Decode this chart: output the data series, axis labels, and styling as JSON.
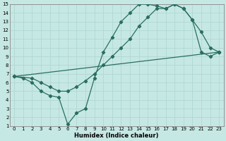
{
  "xlabel": "Humidex (Indice chaleur)",
  "ylabel": "",
  "xlim": [
    -0.5,
    23.5
  ],
  "ylim": [
    1,
    15
  ],
  "xticks": [
    0,
    1,
    2,
    3,
    4,
    5,
    6,
    7,
    8,
    9,
    10,
    11,
    12,
    13,
    14,
    15,
    16,
    17,
    18,
    19,
    20,
    21,
    22,
    23
  ],
  "yticks": [
    1,
    2,
    3,
    4,
    5,
    6,
    7,
    8,
    9,
    10,
    11,
    12,
    13,
    14,
    15
  ],
  "bg_color": "#c6e8e4",
  "grid_color": "#b0d8d4",
  "line_color": "#2a6e60",
  "line1_x": [
    0,
    1,
    2,
    3,
    4,
    5,
    6,
    7,
    8,
    9,
    10,
    11,
    12,
    13,
    14,
    15,
    16,
    17,
    18,
    19,
    20,
    21,
    22,
    23
  ],
  "line1_y": [
    6.7,
    6.5,
    6.0,
    5.0,
    4.5,
    4.3,
    1.2,
    2.5,
    3.0,
    6.5,
    9.5,
    11.2,
    13.0,
    14.0,
    15.0,
    15.0,
    14.8,
    14.5,
    15.0,
    14.5,
    13.2,
    9.5,
    9.0,
    9.5
  ],
  "line2_x": [
    0,
    2,
    3,
    4,
    5,
    6,
    7,
    8,
    9,
    10,
    11,
    12,
    13,
    14,
    15,
    16,
    17,
    18,
    19,
    20,
    21,
    22,
    23
  ],
  "line2_y": [
    6.7,
    6.5,
    6.0,
    5.5,
    5.0,
    5.0,
    5.5,
    6.2,
    7.0,
    8.0,
    9.0,
    10.0,
    11.0,
    12.5,
    13.5,
    14.5,
    14.5,
    15.0,
    14.5,
    13.2,
    11.8,
    10.0,
    9.5
  ],
  "line3_x": [
    0,
    23
  ],
  "line3_y": [
    6.7,
    9.5
  ]
}
